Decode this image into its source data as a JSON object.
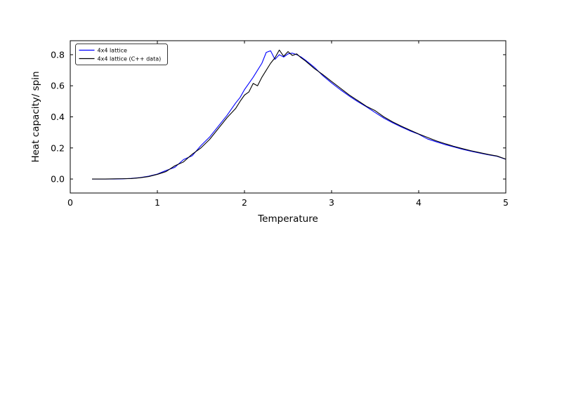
{
  "figure": {
    "background": "#ffffff",
    "series_colors": {
      "python": "#0000ff",
      "cpp": "#000000"
    }
  },
  "chart_data": {
    "type": "line",
    "title": "",
    "xlabel": "Temperature",
    "ylabel": "Heat capacity/ spin",
    "xlim": [
      0,
      5
    ],
    "ylim": [
      -0.09,
      0.89
    ],
    "xticks": [
      0,
      1,
      2,
      3,
      4,
      5
    ],
    "xticklabels": [
      "0",
      "1",
      "2",
      "3",
      "4",
      "5"
    ],
    "yticks": [
      0.0,
      0.2,
      0.4,
      0.6,
      0.8
    ],
    "yticklabels": [
      "0.0",
      "0.2",
      "0.4",
      "0.6",
      "0.8"
    ],
    "grid": false,
    "legend_position": "upper left",
    "x": [
      0.25,
      0.3,
      0.4,
      0.5,
      0.6,
      0.7,
      0.8,
      0.9,
      1.0,
      1.1,
      1.2,
      1.3,
      1.4,
      1.5,
      1.6,
      1.7,
      1.8,
      1.9,
      1.95,
      2.0,
      2.05,
      2.1,
      2.15,
      2.2,
      2.25,
      2.3,
      2.35,
      2.4,
      2.45,
      2.5,
      2.55,
      2.6,
      2.65,
      2.7,
      2.8,
      2.9,
      3.0,
      3.1,
      3.2,
      3.3,
      3.4,
      3.5,
      3.6,
      3.7,
      3.8,
      3.9,
      4.0,
      4.1,
      4.2,
      4.3,
      4.4,
      4.5,
      4.6,
      4.7,
      4.8,
      4.9,
      5.0
    ],
    "series": [
      {
        "name": "4x4 lattice",
        "color": "#0000ff",
        "values": [
          0.0,
          0.0,
          0.0,
          0.0,
          0.001,
          0.004,
          0.009,
          0.018,
          0.032,
          0.055,
          0.075,
          0.125,
          0.15,
          0.215,
          0.27,
          0.34,
          0.41,
          0.49,
          0.525,
          0.575,
          0.615,
          0.655,
          0.7,
          0.745,
          0.815,
          0.825,
          0.77,
          0.8,
          0.785,
          0.805,
          0.81,
          0.8,
          0.785,
          0.765,
          0.72,
          0.665,
          0.618,
          0.575,
          0.535,
          0.498,
          0.465,
          0.428,
          0.392,
          0.362,
          0.335,
          0.31,
          0.288,
          0.258,
          0.24,
          0.222,
          0.207,
          0.192,
          0.179,
          0.167,
          0.156,
          0.146,
          0.127
        ]
      },
      {
        "name": "4x4 lattice (C++ data)",
        "color": "#000000",
        "values": [
          0.0,
          0.0,
          0.0,
          0.001,
          0.002,
          0.003,
          0.008,
          0.016,
          0.03,
          0.048,
          0.085,
          0.11,
          0.16,
          0.2,
          0.255,
          0.325,
          0.395,
          0.455,
          0.5,
          0.54,
          0.56,
          0.615,
          0.6,
          0.655,
          0.7,
          0.745,
          0.78,
          0.83,
          0.79,
          0.82,
          0.795,
          0.805,
          0.78,
          0.76,
          0.712,
          0.672,
          0.628,
          0.585,
          0.542,
          0.505,
          0.468,
          0.44,
          0.4,
          0.368,
          0.34,
          0.315,
          0.29,
          0.268,
          0.246,
          0.228,
          0.211,
          0.196,
          0.182,
          0.17,
          0.158,
          0.148,
          0.128
        ]
      }
    ]
  }
}
